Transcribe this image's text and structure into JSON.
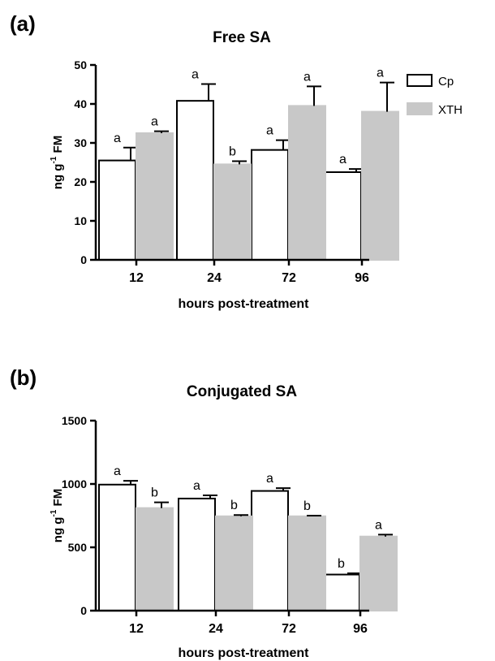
{
  "legend": [
    {
      "name": "Cp",
      "color": "#ffffff",
      "stroke": "#000000"
    },
    {
      "name": "XTH",
      "color": "#c8c8c8",
      "stroke": "#c8c8c8"
    }
  ],
  "chart_data": [
    {
      "type": "bar",
      "panel_label": "(a)",
      "title": "Free SA",
      "xlabel": "hours post-treatment",
      "ylabel_main": "ng g",
      "ylabel_sup": "-1",
      "ylabel_tail": " FM",
      "categories": [
        "12",
        "24",
        "72",
        "96"
      ],
      "ylim": [
        0,
        50
      ],
      "yticks": [
        0,
        10,
        20,
        30,
        40,
        50
      ],
      "series": [
        {
          "name": "Cp",
          "values": [
            25.5,
            40.8,
            28.2,
            22.5
          ],
          "errors": [
            3.3,
            4.3,
            2.5,
            0.8
          ],
          "letters": [
            "a",
            "a",
            "a",
            "a"
          ]
        },
        {
          "name": "XTH",
          "values": [
            32.5,
            24.5,
            39.5,
            38.0
          ],
          "errors": [
            0.5,
            0.8,
            5.0,
            7.5
          ],
          "letters": [
            "a",
            "b",
            "a",
            ""
          ]
        }
      ],
      "legend_position": "top-right"
    },
    {
      "type": "bar",
      "panel_label": "(b)",
      "title": "Conjugated SA",
      "xlabel": "hours post-treatment",
      "ylabel_main": "ng g",
      "ylabel_sup": "-1",
      "ylabel_tail": " FM",
      "categories": [
        "12",
        "24",
        "72",
        "96"
      ],
      "ylim": [
        0,
        1500
      ],
      "yticks": [
        0,
        500,
        1000,
        1500
      ],
      "series": [
        {
          "name": "Cp",
          "values": [
            995,
            885,
            945,
            285
          ],
          "errors": [
            30,
            25,
            22,
            10
          ],
          "letters": [
            "a",
            "a",
            "a",
            "b"
          ]
        },
        {
          "name": "XTH",
          "values": [
            810,
            745,
            745,
            585
          ],
          "errors": [
            45,
            10,
            5,
            15
          ],
          "letters": [
            "b",
            "b",
            "b",
            "a"
          ]
        }
      ]
    }
  ],
  "extra_letters": [
    {
      "panel": 0,
      "category": 3,
      "series": 1,
      "text": "a"
    }
  ]
}
